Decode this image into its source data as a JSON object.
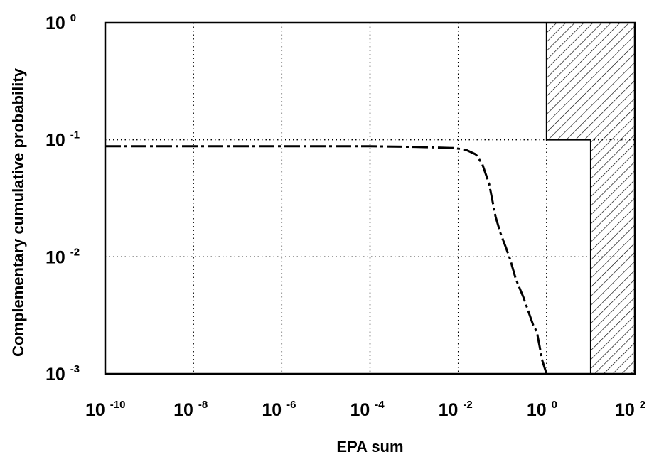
{
  "chart_data": {
    "type": "line",
    "title": "",
    "xlabel": "EPA sum",
    "ylabel": "Complementary cumulative probability",
    "x_scale": "log",
    "y_scale": "log",
    "xlim": [
      1e-10,
      100
    ],
    "ylim": [
      0.001,
      1
    ],
    "grid": "dotted",
    "x_ticks": [
      {
        "base": "10",
        "exp": "-10",
        "value": 1e-10
      },
      {
        "base": "10",
        "exp": "-8",
        "value": 1e-08
      },
      {
        "base": "10",
        "exp": "-6",
        "value": 1e-06
      },
      {
        "base": "10",
        "exp": "-4",
        "value": 0.0001
      },
      {
        "base": "10",
        "exp": "-2",
        "value": 0.01
      },
      {
        "base": "10",
        "exp": "0",
        "value": 1
      },
      {
        "base": "10",
        "exp": "2",
        "value": 100
      }
    ],
    "y_ticks": [
      {
        "base": "10",
        "exp": "0",
        "value": 1
      },
      {
        "base": "10",
        "exp": "-1",
        "value": 0.1
      },
      {
        "base": "10",
        "exp": "-2",
        "value": 0.01
      },
      {
        "base": "10",
        "exp": "-3",
        "value": 0.001
      }
    ],
    "series": [
      {
        "line_style": "long-dash dot",
        "points": [
          [
            1e-10,
            0.088
          ],
          [
            1e-08,
            0.088
          ],
          [
            1e-06,
            0.088
          ],
          [
            0.0001,
            0.088
          ],
          [
            0.001,
            0.087
          ],
          [
            0.003,
            0.086
          ],
          [
            0.008,
            0.085
          ],
          [
            0.015,
            0.082
          ],
          [
            0.025,
            0.075
          ],
          [
            0.035,
            0.062
          ],
          [
            0.05,
            0.042
          ],
          [
            0.07,
            0.022
          ],
          [
            0.09,
            0.016
          ],
          [
            0.12,
            0.012
          ],
          [
            0.15,
            0.0095
          ],
          [
            0.2,
            0.0065
          ],
          [
            0.3,
            0.0045
          ],
          [
            0.4,
            0.0033
          ],
          [
            0.5,
            0.0026
          ],
          [
            0.6,
            0.0023
          ],
          [
            0.7,
            0.0017
          ],
          [
            0.8,
            0.0013
          ],
          [
            1.0,
            0.001
          ]
        ]
      }
    ],
    "shaded_region": {
      "pattern": "diagonal hatch",
      "boundary": [
        [
          1,
          1
        ],
        [
          1,
          0.1
        ],
        [
          10,
          0.1
        ],
        [
          10,
          0.001
        ],
        [
          100,
          0.001
        ],
        [
          100,
          1
        ]
      ]
    },
    "colors": {
      "line": "#000000",
      "grid": "#000000",
      "background": "#ffffff"
    }
  }
}
